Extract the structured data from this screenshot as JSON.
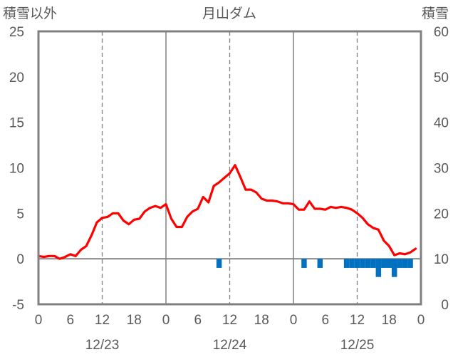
{
  "chart_data": {
    "type": "line",
    "title": "月山ダム",
    "left_axis_label": "積雪以外",
    "right_axis_label": "積雪",
    "left_ylim": [
      -5,
      25
    ],
    "left_ticks": [
      "25",
      "20",
      "15",
      "10",
      "5",
      "0",
      "-5"
    ],
    "right_ylim": [
      0,
      60
    ],
    "right_ticks": [
      "60",
      "50",
      "40",
      "30",
      "20",
      "10",
      "0"
    ],
    "x_range_hours": [
      0,
      72
    ],
    "x_tick_labels": [
      "0",
      "6",
      "12",
      "18",
      "0",
      "6",
      "12",
      "18",
      "0",
      "6",
      "12",
      "18",
      "0"
    ],
    "date_labels": [
      "12/23",
      "12/24",
      "12/25"
    ],
    "grid": "vertical dashed at 12h, solid at 0h, solid horizontal at 0",
    "colors": {
      "temperature": "#ff0000",
      "precipitation": "#0070c0",
      "snow_depth": "#7030a0",
      "frame": "#808080"
    },
    "series": [
      {
        "kind": "line",
        "axis": "left",
        "color": "#ff0000",
        "x": [
          0,
          1,
          2,
          3,
          4,
          5,
          6,
          7,
          8,
          9,
          10,
          11,
          12,
          13,
          14,
          15,
          16,
          17,
          18,
          19,
          20,
          21,
          22,
          23,
          24,
          25,
          26,
          27,
          28,
          29,
          30,
          31,
          32,
          33,
          34,
          35,
          36,
          37,
          38,
          39,
          40,
          41,
          42,
          43,
          44,
          45,
          46,
          47,
          48,
          49,
          50,
          51,
          52,
          53,
          54,
          55,
          56,
          57,
          58,
          59,
          60,
          61,
          62,
          63,
          64,
          65,
          66,
          67,
          68,
          69,
          70,
          71
        ],
        "values": [
          0.3,
          0.2,
          0.3,
          0.3,
          0.0,
          0.2,
          0.5,
          0.3,
          1.0,
          1.4,
          2.6,
          4.0,
          4.5,
          4.6,
          5.0,
          5.0,
          4.2,
          3.8,
          4.3,
          4.4,
          5.2,
          5.6,
          5.8,
          5.6,
          6.0,
          4.4,
          3.5,
          3.5,
          4.6,
          5.2,
          5.5,
          6.8,
          6.2,
          8.0,
          8.4,
          8.9,
          9.4,
          10.3,
          9.0,
          7.6,
          7.6,
          7.3,
          6.6,
          6.4,
          6.4,
          6.3,
          6.1,
          6.1,
          6.0,
          5.4,
          5.4,
          6.3,
          5.5,
          5.5,
          5.4,
          5.7,
          5.6,
          5.7,
          5.6,
          5.4,
          5.0,
          4.5,
          3.8,
          3.4,
          3.2,
          2.0,
          1.4,
          0.4,
          0.6,
          0.5,
          0.7,
          1.1
        ]
      },
      {
        "kind": "bar",
        "axis": "left",
        "color": "#0070c0",
        "x": [
          34,
          50,
          53,
          58,
          59,
          60,
          61,
          62,
          63,
          64,
          65,
          66,
          67,
          68,
          69,
          70
        ],
        "values": [
          -1,
          -1,
          -1,
          -1,
          -1,
          -1,
          -1,
          -1,
          -1,
          -2,
          -1,
          -1,
          -2,
          -1,
          -1,
          -1
        ]
      },
      {
        "kind": "line",
        "axis": "right",
        "color": "#7030a0",
        "x": [
          0,
          72
        ],
        "values": [
          0,
          0
        ]
      }
    ]
  }
}
